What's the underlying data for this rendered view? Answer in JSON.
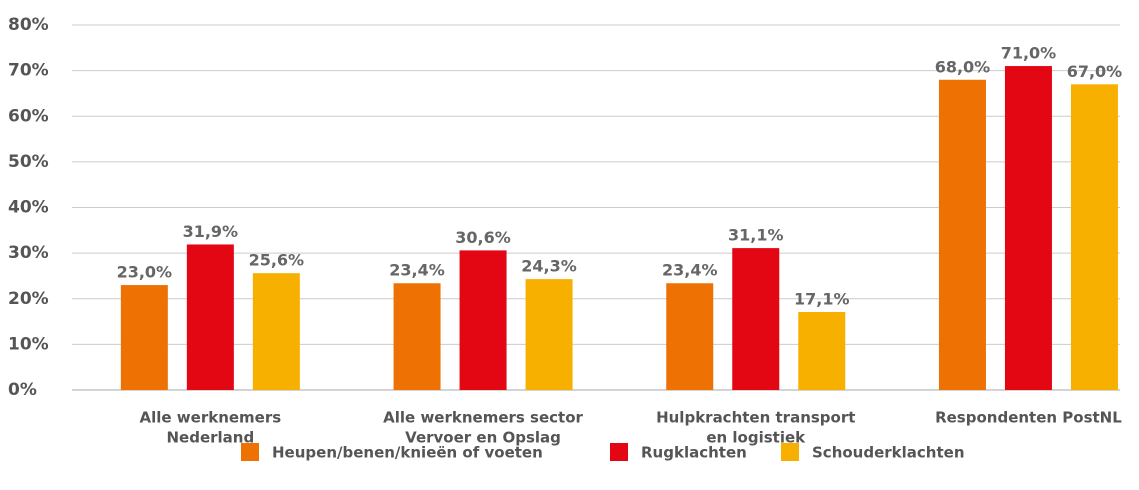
{
  "chart_data": {
    "type": "bar",
    "categories": [
      [
        "Alle werknemers",
        "Nederland"
      ],
      [
        "Alle werknemers sector",
        "Vervoer en Opslag"
      ],
      [
        "Hulpkrachten transport",
        "en logistiek"
      ],
      [
        "Respondenten PostNL"
      ]
    ],
    "series": [
      {
        "name": "Heupen/benen/knieën of voeten",
        "color": "#ee7203",
        "values": [
          23.0,
          23.4,
          23.4,
          68.0
        ],
        "value_labels": [
          "23,0%",
          "23,4%",
          "23,4%",
          "68,0%"
        ]
      },
      {
        "name": "Rugklachten",
        "color": "#e30613",
        "values": [
          31.9,
          30.6,
          31.1,
          71.0
        ],
        "value_labels": [
          "31,9%",
          "30,6%",
          "31,1%",
          "71,0%"
        ]
      },
      {
        "name": "Schouderklachten",
        "color": "#f7b000",
        "values": [
          25.6,
          24.3,
          17.1,
          67.0
        ],
        "value_labels": [
          "25,6%",
          "24,3%",
          "17,1%",
          "67,0%"
        ]
      }
    ],
    "ylim": [
      0,
      80
    ],
    "yticks": [
      {
        "value": 0,
        "label": "0%"
      },
      {
        "value": 10,
        "label": "10%"
      },
      {
        "value": 20,
        "label": "20%"
      },
      {
        "value": 30,
        "label": "30%"
      },
      {
        "value": 40,
        "label": "40%"
      },
      {
        "value": 50,
        "label": "50%"
      },
      {
        "value": 60,
        "label": "60%"
      },
      {
        "value": 70,
        "label": "70%"
      },
      {
        "value": 80,
        "label": "80%"
      }
    ],
    "grid": true,
    "legend": "bottom"
  }
}
